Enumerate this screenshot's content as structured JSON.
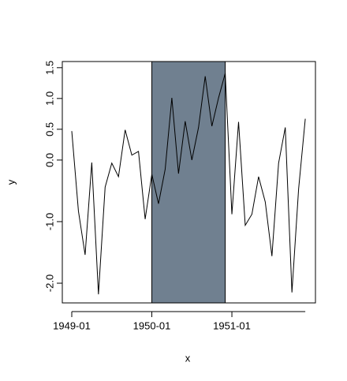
{
  "chart_data": {
    "type": "line",
    "x_label": "x",
    "y_label": "y",
    "x": [
      "1949-01",
      "1949-02",
      "1949-03",
      "1949-04",
      "1949-05",
      "1949-06",
      "1949-07",
      "1949-08",
      "1949-09",
      "1949-10",
      "1949-11",
      "1949-12",
      "1950-01",
      "1950-02",
      "1950-03",
      "1950-04",
      "1950-05",
      "1950-06",
      "1950-07",
      "1950-08",
      "1950-09",
      "1950-10",
      "1950-11",
      "1950-12",
      "1951-01",
      "1951-02",
      "1951-03",
      "1951-04",
      "1951-05",
      "1951-06",
      "1951-07",
      "1951-08",
      "1951-09",
      "1951-10",
      "1951-11",
      "1951-12"
    ],
    "values": [
      0.47,
      -0.83,
      -1.54,
      -0.04,
      -2.18,
      -0.44,
      -0.05,
      -0.27,
      0.49,
      0.08,
      0.14,
      -0.96,
      -0.23,
      -0.71,
      -0.15,
      1.01,
      -0.22,
      0.63,
      0.0,
      0.53,
      1.36,
      0.55,
      1.01,
      1.41,
      -0.88,
      0.62,
      -1.06,
      -0.88,
      -0.27,
      -0.68,
      -1.56,
      -0.05,
      0.53,
      -2.15,
      -0.47,
      0.67
    ],
    "color": "#000000",
    "shade_range": [
      "1950-01",
      "1950-12"
    ],
    "shade_color": "#708090",
    "xticks": [
      "1949-01",
      "1950-01",
      "1951-01"
    ],
    "ylim": [
      -2.32,
      1.6
    ],
    "yticks": [
      {
        "value": 1.5,
        "label": "1.5"
      },
      {
        "value": 1.0,
        "label": "1.0"
      },
      {
        "value": 0.5,
        "label": "0.5"
      },
      {
        "value": 0.0,
        "label": "0.0"
      },
      {
        "value": -1.0,
        "label": "-1.0"
      },
      {
        "value": -2.0,
        "label": "-2.0"
      }
    ],
    "grid": false
  }
}
